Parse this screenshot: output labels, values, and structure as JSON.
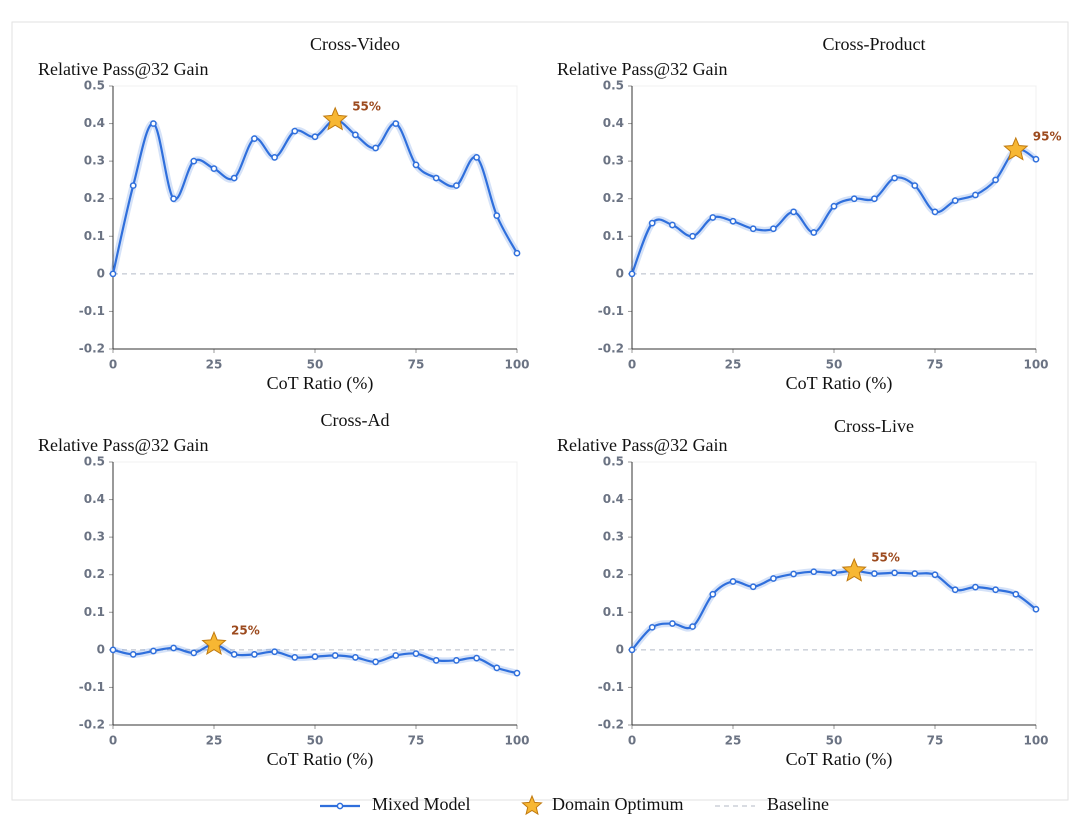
{
  "chart_data": [
    {
      "type": "line",
      "title": "Cross-Video",
      "x_label": "CoT Ratio (%)",
      "y_label": "Relative Pass@32 Gain",
      "x": [
        0,
        5,
        10,
        15,
        20,
        25,
        30,
        35,
        40,
        45,
        50,
        55,
        60,
        65,
        70,
        75,
        80,
        85,
        90,
        95,
        100
      ],
      "series": [
        {
          "color": "#2f6fdc",
          "values": [
            0,
            0.235,
            0.4,
            0.2,
            0.3,
            0.28,
            0.255,
            0.36,
            0.31,
            0.38,
            0.365,
            0.41,
            0.37,
            0.335,
            0.4,
            0.29,
            0.255,
            0.235,
            0.31,
            0.155,
            0.055
          ]
        }
      ],
      "optimum": {
        "x": 55,
        "value": 0.41,
        "label": "55%"
      },
      "baseline": 0,
      "xlim": [
        0,
        100
      ],
      "xticks": [
        0,
        25,
        50,
        75,
        100
      ],
      "ylim": [
        -0.2,
        0.5
      ],
      "yticks": [
        -0.2,
        -0.1,
        0,
        0.1,
        0.2,
        0.3,
        0.4,
        0.5
      ]
    },
    {
      "type": "line",
      "title": "Cross-Product",
      "x_label": "CoT Ratio (%)",
      "y_label": "Relative Pass@32 Gain",
      "x": [
        0,
        5,
        10,
        15,
        20,
        25,
        30,
        35,
        40,
        45,
        50,
        55,
        60,
        65,
        70,
        75,
        80,
        85,
        90,
        95,
        100
      ],
      "series": [
        {
          "color": "#2f6fdc",
          "values": [
            0,
            0.135,
            0.13,
            0.1,
            0.15,
            0.14,
            0.12,
            0.12,
            0.165,
            0.11,
            0.18,
            0.2,
            0.2,
            0.255,
            0.235,
            0.165,
            0.195,
            0.21,
            0.25,
            0.33,
            0.305
          ]
        }
      ],
      "optimum": {
        "x": 95,
        "value": 0.33,
        "label": "95%"
      },
      "baseline": 0,
      "xlim": [
        0,
        100
      ],
      "xticks": [
        0,
        25,
        50,
        75,
        100
      ],
      "ylim": [
        -0.2,
        0.5
      ],
      "yticks": [
        -0.2,
        -0.1,
        0,
        0.1,
        0.2,
        0.3,
        0.4,
        0.5
      ]
    },
    {
      "type": "line",
      "title": "Cross-Ad",
      "x_label": "CoT Ratio (%)",
      "y_label": "Relative Pass@32 Gain",
      "x": [
        0,
        5,
        10,
        15,
        20,
        25,
        30,
        35,
        40,
        45,
        50,
        55,
        60,
        65,
        70,
        75,
        80,
        85,
        90,
        95,
        100
      ],
      "series": [
        {
          "color": "#2f6fdc",
          "values": [
            0,
            -0.012,
            -0.003,
            0.005,
            -0.008,
            0.015,
            -0.012,
            -0.012,
            -0.005,
            -0.02,
            -0.018,
            -0.015,
            -0.02,
            -0.032,
            -0.015,
            -0.01,
            -0.028,
            -0.028,
            -0.022,
            -0.048,
            -0.062
          ]
        }
      ],
      "optimum": {
        "x": 25,
        "value": 0.015,
        "label": "25%"
      },
      "baseline": 0,
      "xlim": [
        0,
        100
      ],
      "xticks": [
        0,
        25,
        50,
        75,
        100
      ],
      "ylim": [
        -0.2,
        0.5
      ],
      "yticks": [
        -0.2,
        -0.1,
        0,
        0.1,
        0.2,
        0.3,
        0.4,
        0.5
      ]
    },
    {
      "type": "line",
      "title": "Cross-Live",
      "x_label": "CoT Ratio (%)",
      "y_label": "Relative Pass@32 Gain",
      "x": [
        0,
        5,
        10,
        15,
        20,
        25,
        30,
        35,
        40,
        45,
        50,
        55,
        60,
        65,
        70,
        75,
        80,
        85,
        90,
        95,
        100
      ],
      "series": [
        {
          "color": "#2f6fdc",
          "values": [
            0,
            0.06,
            0.07,
            0.062,
            0.148,
            0.182,
            0.168,
            0.19,
            0.202,
            0.208,
            0.205,
            0.21,
            0.203,
            0.205,
            0.203,
            0.2,
            0.16,
            0.167,
            0.16,
            0.148,
            0.108
          ]
        }
      ],
      "optimum": {
        "x": 55,
        "value": 0.21,
        "label": "55%"
      },
      "baseline": 0,
      "xlim": [
        0,
        100
      ],
      "xticks": [
        0,
        25,
        50,
        75,
        100
      ],
      "ylim": [
        -0.2,
        0.5
      ],
      "yticks": [
        -0.2,
        -0.1,
        0,
        0.1,
        0.2,
        0.3,
        0.4,
        0.5
      ]
    }
  ],
  "legend": {
    "items": [
      {
        "name": "Mixed Model",
        "color": "#2f6fdc"
      },
      {
        "name": "Domain Optimum",
        "color": "#f7b733"
      },
      {
        "name": "Baseline",
        "color": "#b3bac6"
      }
    ]
  }
}
